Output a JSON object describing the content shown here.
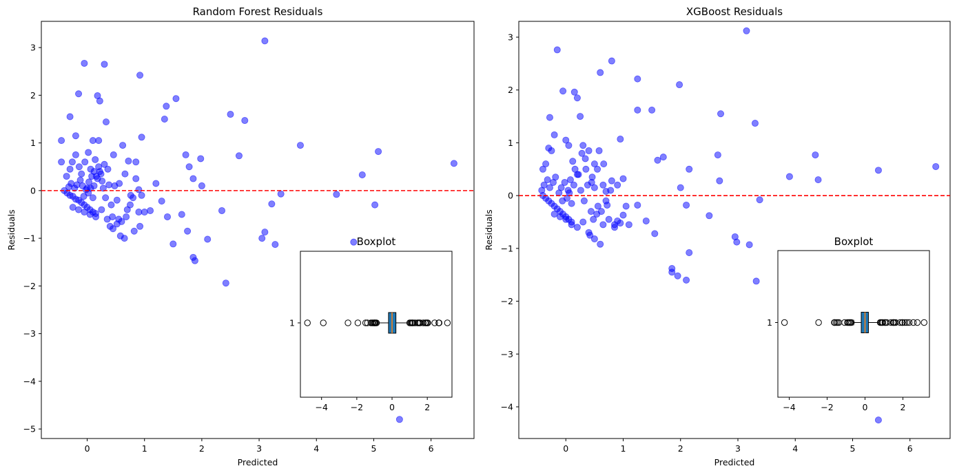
{
  "chart_data": [
    {
      "type": "scatter",
      "title": "Random Forest Residuals",
      "xlabel": "Predicted",
      "ylabel": "Residuals",
      "xlim": [
        -0.8,
        6.75
      ],
      "ylim": [
        -5.2,
        3.55
      ],
      "xticks": [
        0,
        1,
        2,
        3,
        4,
        5,
        6
      ],
      "yticks": [
        -5,
        -4,
        -3,
        -2,
        -1,
        0,
        1,
        2,
        3
      ],
      "marker_color": "#0000ff",
      "reference_line": {
        "y": 0,
        "color": "#ff0000",
        "style": "dashed"
      },
      "points": [
        [
          -0.35,
          -0.05
        ],
        [
          -0.3,
          -0.1
        ],
        [
          -0.25,
          -0.12
        ],
        [
          -0.2,
          -0.18
        ],
        [
          -0.15,
          -0.2
        ],
        [
          -0.1,
          -0.25
        ],
        [
          -0.05,
          -0.3
        ],
        [
          0.0,
          -0.35
        ],
        [
          0.05,
          -0.4
        ],
        [
          0.1,
          -0.45
        ],
        [
          0.15,
          -0.48
        ],
        [
          -0.4,
          0.0
        ],
        [
          -0.32,
          0.08
        ],
        [
          -0.28,
          0.15
        ],
        [
          -0.22,
          0.05
        ],
        [
          -0.18,
          0.12
        ],
        [
          -0.12,
          0.22
        ],
        [
          -0.08,
          0.1
        ],
        [
          -0.02,
          0.02
        ],
        [
          0.03,
          0.18
        ],
        [
          0.08,
          0.3
        ],
        [
          0.12,
          0.1
        ],
        [
          0.18,
          0.25
        ],
        [
          0.22,
          0.4
        ],
        [
          0.28,
          0.05
        ],
        [
          0.32,
          -0.15
        ],
        [
          0.38,
          0.12
        ],
        [
          0.42,
          -0.3
        ],
        [
          0.48,
          0.1
        ],
        [
          0.52,
          -0.2
        ],
        [
          -0.36,
          0.3
        ],
        [
          -0.3,
          0.45
        ],
        [
          -0.26,
          0.6
        ],
        [
          -0.2,
          0.75
        ],
        [
          -0.14,
          0.5
        ],
        [
          -0.1,
          0.35
        ],
        [
          -0.04,
          0.6
        ],
        [
          0.02,
          0.8
        ],
        [
          0.06,
          0.45
        ],
        [
          0.1,
          1.05
        ],
        [
          0.14,
          0.65
        ],
        [
          0.2,
          0.5
        ],
        [
          0.24,
          0.35
        ],
        [
          0.3,
          0.55
        ],
        [
          -0.25,
          -0.35
        ],
        [
          -0.15,
          -0.4
        ],
        [
          -0.05,
          -0.45
        ],
        [
          0.05,
          -0.5
        ],
        [
          0.15,
          -0.55
        ],
        [
          0.25,
          -0.4
        ],
        [
          0.35,
          -0.6
        ],
        [
          0.4,
          -0.75
        ],
        [
          0.45,
          -0.8
        ],
        [
          0.55,
          -0.6
        ],
        [
          0.6,
          -0.65
        ],
        [
          0.65,
          -1.0
        ],
        [
          0.7,
          -0.4
        ],
        [
          0.75,
          -0.3
        ],
        [
          0.8,
          -0.15
        ],
        [
          0.85,
          0.25
        ],
        [
          0.9,
          -0.45
        ],
        [
          -0.45,
          1.05
        ],
        [
          -0.45,
          0.6
        ],
        [
          -0.3,
          1.55
        ],
        [
          -0.2,
          1.15
        ],
        [
          -0.15,
          2.03
        ],
        [
          -0.05,
          2.67
        ],
        [
          0.18,
          1.99
        ],
        [
          0.22,
          1.88
        ],
        [
          0.3,
          2.65
        ],
        [
          0.33,
          1.44
        ],
        [
          0.92,
          2.42
        ],
        [
          0.85,
          0.6
        ],
        [
          0.9,
          0.02
        ],
        [
          0.95,
          -0.1
        ],
        [
          1.0,
          -0.45
        ],
        [
          1.1,
          -0.42
        ],
        [
          1.2,
          0.15
        ],
        [
          1.35,
          1.5
        ],
        [
          1.38,
          1.77
        ],
        [
          1.55,
          1.93
        ],
        [
          1.3,
          -0.22
        ],
        [
          1.4,
          -0.55
        ],
        [
          1.5,
          -1.12
        ],
        [
          1.65,
          -0.5
        ],
        [
          1.72,
          0.75
        ],
        [
          1.78,
          0.5
        ],
        [
          1.75,
          -0.85
        ],
        [
          1.85,
          0.25
        ],
        [
          1.85,
          -1.4
        ],
        [
          1.88,
          -1.47
        ],
        [
          1.98,
          0.67
        ],
        [
          2.0,
          0.1
        ],
        [
          2.1,
          -1.02
        ],
        [
          2.35,
          -0.42
        ],
        [
          2.42,
          -1.94
        ],
        [
          2.5,
          1.6
        ],
        [
          2.65,
          0.73
        ],
        [
          2.75,
          1.47
        ],
        [
          3.05,
          -1.0
        ],
        [
          3.1,
          -0.87
        ],
        [
          3.1,
          3.14
        ],
        [
          3.22,
          -0.28
        ],
        [
          3.28,
          -1.13
        ],
        [
          3.38,
          -0.07
        ],
        [
          3.72,
          0.95
        ],
        [
          4.35,
          -0.08
        ],
        [
          4.65,
          -1.08
        ],
        [
          4.8,
          0.33
        ],
        [
          5.02,
          -0.3
        ],
        [
          5.08,
          0.82
        ],
        [
          5.45,
          -4.8
        ],
        [
          6.4,
          0.57
        ],
        [
          0.12,
          0.4
        ],
        [
          0.16,
          0.3
        ],
        [
          0.26,
          0.2
        ],
        [
          0.36,
          0.45
        ],
        [
          0.46,
          0.75
        ],
        [
          0.56,
          0.15
        ],
        [
          0.66,
          0.35
        ],
        [
          0.76,
          -0.1
        ],
        [
          0.02,
          -0.05
        ],
        [
          0.06,
          0.05
        ],
        [
          0.1,
          -0.15
        ],
        [
          -0.06,
          -0.12
        ],
        [
          0.44,
          -0.55
        ],
        [
          0.52,
          -0.7
        ],
        [
          0.58,
          -0.95
        ],
        [
          0.68,
          -0.55
        ],
        [
          0.82,
          -0.85
        ],
        [
          0.92,
          -0.75
        ],
        [
          0.95,
          1.12
        ],
        [
          0.62,
          0.95
        ],
        [
          0.72,
          0.62
        ],
        [
          0.2,
          1.05
        ],
        [
          0.0,
          0.05
        ]
      ],
      "inset": {
        "type": "boxplot",
        "title": "Boxplot",
        "orientation": "horizontal",
        "category": "1",
        "xlim": [
          -5.2,
          3.4
        ],
        "xticks": [
          -4,
          -2,
          0,
          2
        ],
        "box_color": "#1f77b4",
        "median_color": "#ff7f0e",
        "stats": {
          "q1": -0.2,
          "median": 0.0,
          "q3": 0.22,
          "whisker_low": -0.83,
          "whisker_high": 0.95
        },
        "fliers": [
          -4.8,
          -3.9,
          -2.5,
          -1.94,
          -1.5,
          -1.4,
          -1.2,
          -1.13,
          -1.08,
          -1.02,
          -1.0,
          -0.97,
          -0.93,
          -0.88,
          1.0,
          1.05,
          1.12,
          1.15,
          1.2,
          1.3,
          1.44,
          1.5,
          1.55,
          1.6,
          1.77,
          1.88,
          1.93,
          1.99,
          2.03,
          2.42,
          2.65,
          2.67,
          3.14
        ]
      }
    },
    {
      "type": "scatter",
      "title": "XGBoost Residuals",
      "xlabel": "Predicted",
      "ylabel": "Residuals",
      "xlim": [
        -0.82,
        6.7
      ],
      "ylim": [
        -4.6,
        3.3
      ],
      "xticks": [
        0,
        1,
        2,
        3,
        4,
        5,
        6
      ],
      "yticks": [
        -4,
        -3,
        -2,
        -1,
        0,
        1,
        2,
        3
      ],
      "marker_color": "#0000ff",
      "reference_line": {
        "y": 0,
        "color": "#ff0000",
        "style": "dashed"
      },
      "points": [
        [
          -0.4,
          0.0
        ],
        [
          -0.35,
          -0.05
        ],
        [
          -0.3,
          -0.1
        ],
        [
          -0.25,
          -0.15
        ],
        [
          -0.2,
          -0.2
        ],
        [
          -0.15,
          -0.25
        ],
        [
          -0.1,
          -0.3
        ],
        [
          -0.05,
          -0.35
        ],
        [
          0.0,
          -0.4
        ],
        [
          0.05,
          -0.45
        ],
        [
          0.1,
          -0.5
        ],
        [
          -0.42,
          0.1
        ],
        [
          -0.38,
          0.2
        ],
        [
          -0.32,
          0.3
        ],
        [
          -0.28,
          0.15
        ],
        [
          -0.22,
          0.25
        ],
        [
          -0.18,
          0.35
        ],
        [
          -0.12,
          0.05
        ],
        [
          -0.08,
          0.15
        ],
        [
          -0.02,
          0.25
        ],
        [
          0.04,
          0.1
        ],
        [
          0.08,
          0.3
        ],
        [
          0.14,
          0.2
        ],
        [
          0.2,
          0.4
        ],
        [
          0.26,
          0.1
        ],
        [
          0.32,
          -0.1
        ],
        [
          0.38,
          0.2
        ],
        [
          0.44,
          -0.3
        ],
        [
          0.5,
          0.15
        ],
        [
          0.56,
          -0.2
        ],
        [
          -0.4,
          0.5
        ],
        [
          -0.35,
          0.6
        ],
        [
          -0.3,
          0.9
        ],
        [
          -0.25,
          0.85
        ],
        [
          -0.2,
          1.15
        ],
        [
          -0.28,
          1.48
        ],
        [
          -0.15,
          2.76
        ],
        [
          -0.05,
          1.98
        ],
        [
          0.0,
          1.05
        ],
        [
          0.05,
          0.95
        ],
        [
          0.15,
          1.96
        ],
        [
          0.2,
          1.85
        ],
        [
          0.25,
          1.5
        ],
        [
          0.28,
          0.8
        ],
        [
          0.3,
          0.95
        ],
        [
          0.35,
          0.5
        ],
        [
          0.4,
          0.85
        ],
        [
          0.45,
          0.25
        ],
        [
          0.5,
          0.6
        ],
        [
          0.55,
          0.5
        ],
        [
          0.6,
          2.33
        ],
        [
          0.65,
          0.2
        ],
        [
          0.7,
          -0.1
        ],
        [
          0.75,
          -0.45
        ],
        [
          0.8,
          2.55
        ],
        [
          0.85,
          -0.55
        ],
        [
          0.9,
          0.2
        ],
        [
          0.95,
          1.07
        ],
        [
          1.0,
          0.32
        ],
        [
          1.05,
          -0.2
        ],
        [
          1.1,
          -0.55
        ],
        [
          1.25,
          2.21
        ],
        [
          1.25,
          1.62
        ],
        [
          1.25,
          -0.18
        ],
        [
          1.4,
          -0.48
        ],
        [
          1.5,
          1.62
        ],
        [
          1.55,
          -0.72
        ],
        [
          1.6,
          0.67
        ],
        [
          1.7,
          0.73
        ],
        [
          1.85,
          -1.38
        ],
        [
          1.85,
          -1.45
        ],
        [
          1.95,
          -1.52
        ],
        [
          1.98,
          2.1
        ],
        [
          2.0,
          0.15
        ],
        [
          2.1,
          -1.6
        ],
        [
          2.1,
          -0.18
        ],
        [
          2.15,
          0.5
        ],
        [
          2.15,
          -1.08
        ],
        [
          2.5,
          -0.38
        ],
        [
          2.65,
          0.77
        ],
        [
          2.7,
          1.55
        ],
        [
          2.68,
          0.28
        ],
        [
          2.95,
          -0.78
        ],
        [
          2.98,
          -0.88
        ],
        [
          3.15,
          3.12
        ],
        [
          3.2,
          -0.93
        ],
        [
          3.3,
          1.37
        ],
        [
          3.32,
          -1.62
        ],
        [
          3.38,
          -0.08
        ],
        [
          3.9,
          0.36
        ],
        [
          4.35,
          0.77
        ],
        [
          4.4,
          0.3
        ],
        [
          5.45,
          0.48
        ],
        [
          5.45,
          -4.25
        ],
        [
          6.45,
          0.55
        ],
        [
          -0.2,
          -0.35
        ],
        [
          -0.1,
          -0.4
        ],
        [
          0.0,
          -0.45
        ],
        [
          0.1,
          -0.55
        ],
        [
          0.2,
          -0.6
        ],
        [
          0.3,
          -0.5
        ],
        [
          0.4,
          -0.7
        ],
        [
          0.42,
          -0.75
        ],
        [
          0.5,
          -0.82
        ],
        [
          0.6,
          -0.92
        ],
        [
          0.65,
          -0.55
        ],
        [
          0.72,
          -0.18
        ],
        [
          0.8,
          0.28
        ],
        [
          0.85,
          -0.6
        ],
        [
          0.9,
          -0.48
        ],
        [
          0.95,
          -0.52
        ],
        [
          1.0,
          -0.37
        ],
        [
          0.12,
          0.65
        ],
        [
          0.16,
          0.5
        ],
        [
          0.22,
          0.4
        ],
        [
          0.34,
          0.7
        ],
        [
          0.46,
          0.35
        ],
        [
          0.58,
          0.85
        ],
        [
          0.66,
          0.6
        ],
        [
          0.78,
          0.1
        ],
        [
          0.02,
          -0.05
        ],
        [
          0.06,
          0.05
        ],
        [
          0.1,
          -0.15
        ],
        [
          -0.06,
          -0.1
        ],
        [
          0.48,
          -0.45
        ],
        [
          0.54,
          -0.35
        ],
        [
          0.62,
          -0.3
        ],
        [
          0.7,
          0.08
        ]
      ],
      "inset": {
        "type": "boxplot",
        "title": "Boxplot",
        "orientation": "horizontal",
        "category": "1",
        "xlim": [
          -4.6,
          3.4
        ],
        "xticks": [
          -4,
          -2,
          0,
          2
        ],
        "box_color": "#1f77b4",
        "median_color": "#ff7f0e",
        "stats": {
          "q1": -0.2,
          "median": 0.0,
          "q3": 0.18,
          "whisker_low": -0.6,
          "whisker_high": 0.75
        },
        "fliers": [
          -4.25,
          -2.45,
          -1.62,
          -1.6,
          -1.52,
          -1.45,
          -1.38,
          -1.08,
          -0.93,
          -0.88,
          -0.82,
          -0.78,
          -0.72,
          0.8,
          0.85,
          0.9,
          0.95,
          1.05,
          1.07,
          1.15,
          1.37,
          1.48,
          1.5,
          1.55,
          1.62,
          1.85,
          1.96,
          1.98,
          2.1,
          2.21,
          2.33,
          2.55,
          2.76,
          3.12
        ]
      }
    }
  ]
}
